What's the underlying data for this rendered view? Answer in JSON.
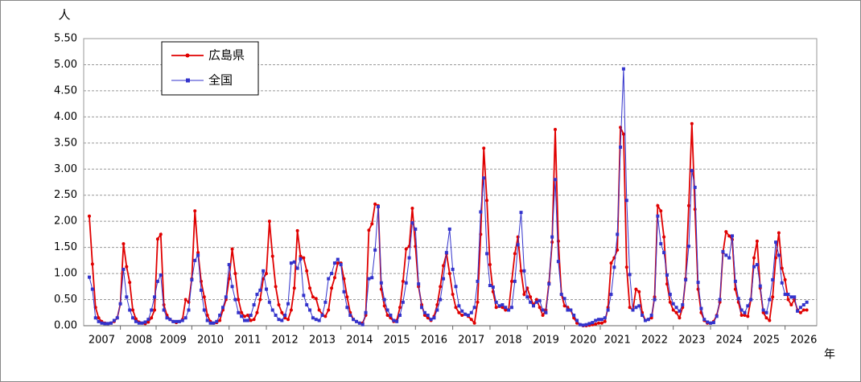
{
  "chart_data": {
    "type": "line",
    "y_unit": "人",
    "x_unit": "年",
    "legend": "upper left",
    "grid": true,
    "ylim": [
      0,
      5.5
    ],
    "yticks": [
      {
        "value": 0,
        "label": "0.00"
      },
      {
        "value": 0.5,
        "label": "0.50"
      },
      {
        "value": 1,
        "label": "1.00"
      },
      {
        "value": 1.5,
        "label": "1.50"
      },
      {
        "value": 2,
        "label": "2.00"
      },
      {
        "value": 2.5,
        "label": "2.50"
      },
      {
        "value": 3,
        "label": "3.00"
      },
      {
        "value": 3.5,
        "label": "3.50"
      },
      {
        "value": 4,
        "label": "4.00"
      },
      {
        "value": 4.5,
        "label": "4.50"
      },
      {
        "value": 5,
        "label": "5.00"
      },
      {
        "value": 5.5,
        "label": "5.50"
      }
    ],
    "year_labels": [
      {
        "index": 4,
        "label": "2007"
      },
      {
        "index": 16,
        "label": "2008"
      },
      {
        "index": 27,
        "label": "2009"
      },
      {
        "index": 39,
        "label": "2010"
      },
      {
        "index": 51,
        "label": "2011"
      },
      {
        "index": 63,
        "label": "2012"
      },
      {
        "index": 75,
        "label": "2013"
      },
      {
        "index": 87,
        "label": "2014"
      },
      {
        "index": 99,
        "label": "2015"
      },
      {
        "index": 111,
        "label": "2016"
      },
      {
        "index": 123,
        "label": "2017"
      },
      {
        "index": 135,
        "label": "2018"
      },
      {
        "index": 147,
        "label": "2019"
      },
      {
        "index": 159,
        "label": "2020"
      },
      {
        "index": 170,
        "label": "2021"
      },
      {
        "index": 182,
        "label": "2022"
      },
      {
        "index": 194,
        "label": "2023"
      },
      {
        "index": 206,
        "label": "2024"
      },
      {
        "index": 218,
        "label": "2025"
      },
      {
        "index": 230,
        "label": "2026"
      }
    ],
    "series": [
      {
        "name": "広島県",
        "color": "#e00000",
        "marker": "circle",
        "values": [
          2.1,
          1.18,
          0.35,
          0.15,
          0.08,
          0.05,
          0.04,
          0.05,
          0.08,
          0.15,
          0.42,
          1.57,
          1.13,
          0.83,
          0.3,
          0.13,
          0.07,
          0.05,
          0.04,
          0.07,
          0.15,
          0.3,
          1.66,
          1.75,
          0.4,
          0.2,
          0.12,
          0.08,
          0.06,
          0.08,
          0.12,
          0.5,
          0.45,
          0.9,
          2.2,
          1.4,
          0.85,
          0.55,
          0.2,
          0.08,
          0.05,
          0.06,
          0.1,
          0.3,
          0.5,
          0.9,
          1.47,
          1.0,
          0.5,
          0.25,
          0.18,
          0.2,
          0.1,
          0.12,
          0.25,
          0.5,
          0.9,
          1.0,
          2.0,
          1.33,
          0.75,
          0.4,
          0.25,
          0.15,
          0.12,
          0.3,
          0.72,
          1.82,
          1.33,
          1.3,
          1.05,
          0.72,
          0.55,
          0.52,
          0.3,
          0.22,
          0.18,
          0.3,
          0.72,
          0.92,
          1.2,
          1.2,
          0.9,
          0.55,
          0.25,
          0.12,
          0.08,
          0.05,
          0.05,
          0.2,
          1.83,
          1.95,
          2.33,
          2.3,
          0.7,
          0.38,
          0.2,
          0.15,
          0.08,
          0.1,
          0.35,
          0.85,
          1.47,
          1.52,
          2.25,
          1.52,
          0.75,
          0.4,
          0.2,
          0.15,
          0.1,
          0.18,
          0.4,
          0.75,
          1.15,
          1.38,
          1.0,
          0.6,
          0.35,
          0.25,
          0.2,
          0.22,
          0.18,
          0.12,
          0.05,
          0.45,
          1.75,
          3.4,
          2.4,
          1.17,
          0.65,
          0.35,
          0.37,
          0.35,
          0.3,
          0.3,
          0.85,
          1.38,
          1.7,
          1.05,
          0.6,
          0.72,
          0.55,
          0.4,
          0.5,
          0.35,
          0.2,
          0.3,
          0.82,
          1.6,
          3.76,
          1.62,
          0.6,
          0.38,
          0.35,
          0.3,
          0.15,
          0.05,
          0.02,
          0.0,
          0.0,
          0.01,
          0.02,
          0.03,
          0.05,
          0.05,
          0.08,
          0.35,
          1.2,
          1.3,
          1.45,
          3.8,
          3.67,
          1.12,
          0.35,
          0.3,
          0.7,
          0.65,
          0.25,
          0.1,
          0.12,
          0.15,
          0.55,
          2.3,
          2.2,
          1.7,
          0.8,
          0.45,
          0.3,
          0.25,
          0.15,
          0.35,
          0.9,
          2.3,
          3.87,
          2.23,
          0.7,
          0.25,
          0.1,
          0.05,
          0.05,
          0.08,
          0.2,
          0.45,
          1.4,
          1.8,
          1.72,
          1.65,
          0.7,
          0.45,
          0.2,
          0.2,
          0.18,
          0.5,
          1.3,
          1.62,
          0.72,
          0.25,
          0.15,
          0.1,
          0.55,
          1.3,
          1.78,
          1.1,
          0.88,
          0.5,
          0.4,
          0.5,
          0.3,
          0.25,
          0.3,
          0.3
        ]
      },
      {
        "name": "全国",
        "color": "#3333cc",
        "marker": "square",
        "values": [
          0.93,
          0.7,
          0.15,
          0.08,
          0.05,
          0.04,
          0.04,
          0.05,
          0.1,
          0.15,
          0.42,
          1.08,
          0.55,
          0.3,
          0.15,
          0.08,
          0.05,
          0.05,
          0.07,
          0.12,
          0.3,
          0.55,
          0.85,
          0.97,
          0.3,
          0.15,
          0.12,
          0.08,
          0.08,
          0.08,
          0.1,
          0.15,
          0.3,
          0.88,
          1.25,
          1.35,
          0.68,
          0.3,
          0.1,
          0.05,
          0.05,
          0.08,
          0.2,
          0.35,
          0.55,
          1.17,
          0.75,
          0.5,
          0.25,
          0.18,
          0.1,
          0.1,
          0.2,
          0.4,
          0.6,
          0.68,
          1.05,
          0.7,
          0.45,
          0.3,
          0.2,
          0.12,
          0.1,
          0.2,
          0.42,
          1.2,
          1.22,
          1.1,
          1.28,
          0.58,
          0.4,
          0.3,
          0.15,
          0.12,
          0.1,
          0.2,
          0.45,
          0.9,
          1.0,
          1.2,
          1.27,
          1.17,
          0.65,
          0.35,
          0.2,
          0.12,
          0.08,
          0.05,
          0.02,
          0.25,
          0.9,
          0.92,
          1.45,
          2.28,
          0.82,
          0.5,
          0.3,
          0.2,
          0.1,
          0.08,
          0.2,
          0.45,
          0.82,
          1.3,
          1.97,
          1.85,
          0.8,
          0.35,
          0.25,
          0.2,
          0.12,
          0.15,
          0.3,
          0.5,
          0.9,
          1.4,
          1.85,
          1.08,
          0.75,
          0.38,
          0.28,
          0.22,
          0.2,
          0.25,
          0.35,
          0.85,
          2.18,
          2.83,
          1.38,
          0.77,
          0.74,
          0.45,
          0.38,
          0.4,
          0.35,
          0.3,
          0.35,
          0.85,
          1.55,
          2.17,
          1.05,
          0.55,
          0.45,
          0.38,
          0.45,
          0.48,
          0.3,
          0.25,
          0.8,
          1.7,
          2.8,
          1.23,
          0.6,
          0.52,
          0.3,
          0.3,
          0.2,
          0.1,
          0.02,
          0.01,
          0.02,
          0.04,
          0.06,
          0.1,
          0.12,
          0.12,
          0.15,
          0.3,
          0.6,
          1.12,
          1.75,
          3.42,
          4.92,
          2.4,
          0.98,
          0.3,
          0.35,
          0.38,
          0.2,
          0.1,
          0.12,
          0.2,
          0.5,
          2.1,
          1.57,
          1.4,
          0.97,
          0.6,
          0.42,
          0.35,
          0.28,
          0.4,
          0.88,
          1.52,
          2.97,
          2.65,
          0.83,
          0.33,
          0.12,
          0.07,
          0.05,
          0.06,
          0.18,
          0.5,
          1.42,
          1.35,
          1.3,
          1.72,
          0.85,
          0.52,
          0.3,
          0.25,
          0.38,
          0.5,
          1.13,
          1.17,
          0.76,
          0.3,
          0.25,
          0.5,
          0.88,
          1.6,
          1.35,
          0.82,
          0.6,
          0.6,
          0.55,
          0.55,
          0.28,
          0.35,
          0.4,
          0.45
        ]
      }
    ]
  }
}
